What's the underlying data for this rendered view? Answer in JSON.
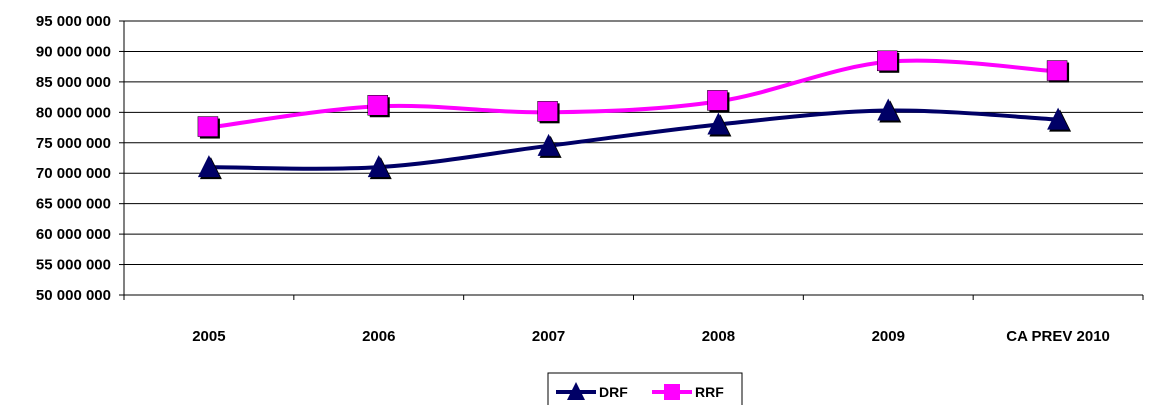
{
  "chart_data": {
    "type": "line",
    "categories": [
      "2005",
      "2006",
      "2007",
      "2008",
      "2009",
      "CA PREV 2010"
    ],
    "series": [
      {
        "name": "DRF",
        "color": "#000066",
        "marker": "triangle",
        "values": [
          71000000,
          71000000,
          74500000,
          78000000,
          80300000,
          78800000
        ]
      },
      {
        "name": "RRF",
        "color": "#FF00FF",
        "marker": "square",
        "values": [
          77500000,
          81000000,
          80000000,
          81800000,
          88300000,
          86700000
        ]
      }
    ],
    "yticks": [
      "95 000 000",
      "90 000 000",
      "85 000 000",
      "80 000 000",
      "75 000 000",
      "70 000 000",
      "65 000 000",
      "60 000 000",
      "55 000 000",
      "50 000 000"
    ],
    "ylim": [
      50000000,
      95000000
    ],
    "ystep": 5000000,
    "grid": true,
    "legend": "bottom-center",
    "title": "",
    "xlabel": "",
    "ylabel": ""
  }
}
